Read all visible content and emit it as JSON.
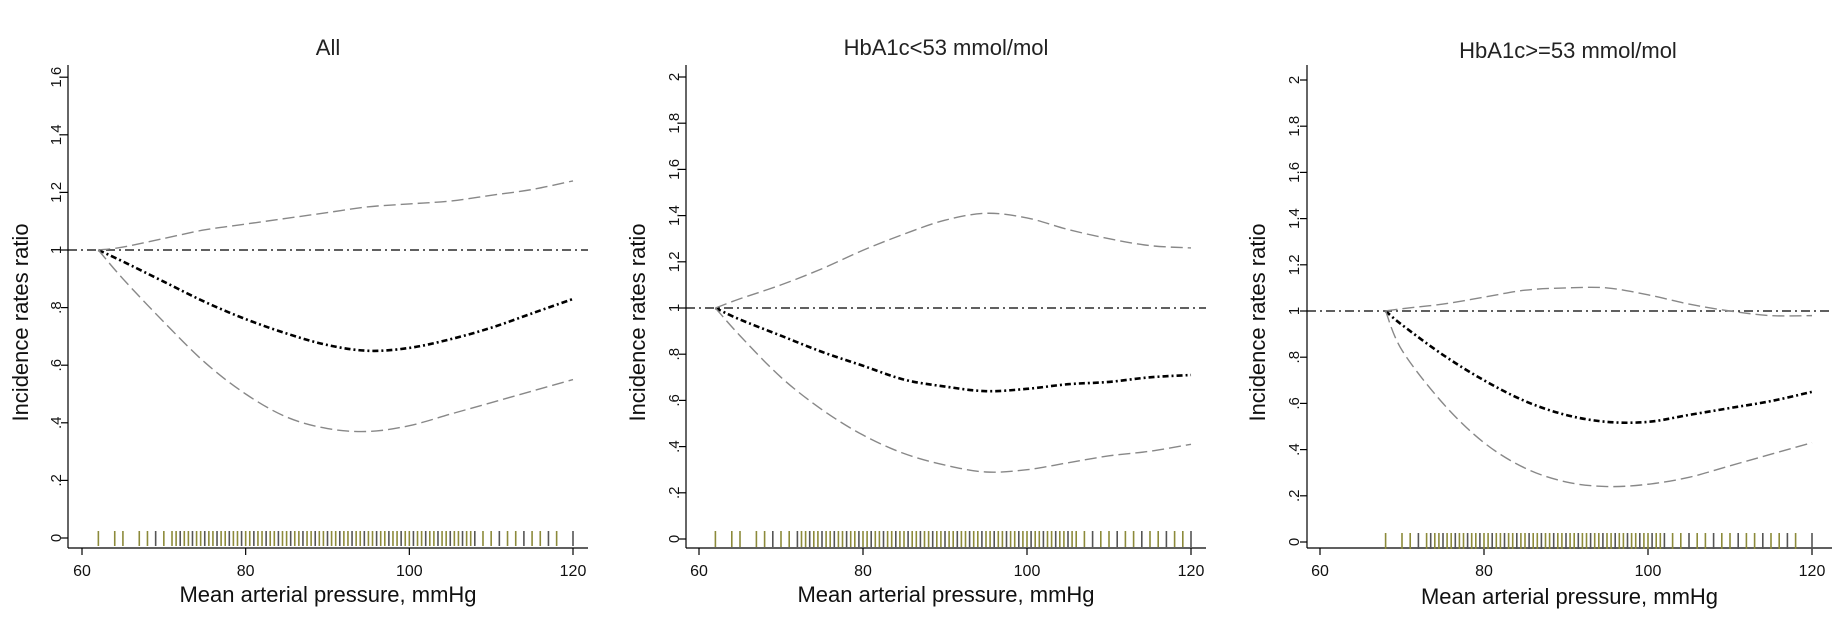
{
  "chart_data": [
    {
      "type": "line",
      "title": "All",
      "xlabel": "Mean arterial pressure, mmHg",
      "ylabel": "Incidence rates ratio",
      "xlim": [
        59,
        121
      ],
      "ylim": [
        0,
        1.65
      ],
      "xticks": [
        "60",
        "80",
        "100",
        "120"
      ],
      "yticks": [
        "0",
        ".2",
        ".4",
        ".6",
        ".8",
        "1",
        "1.2",
        "1.4",
        "1.6"
      ],
      "reference_line": 1,
      "series": [
        {
          "role": "estimate",
          "style": "dash-dot",
          "color": "#000000",
          "x": [
            62,
            65,
            70,
            75,
            80,
            85,
            90,
            95,
            100,
            105,
            110,
            115,
            120
          ],
          "y": [
            1.0,
            0.96,
            0.89,
            0.82,
            0.76,
            0.71,
            0.67,
            0.65,
            0.66,
            0.69,
            0.73,
            0.78,
            0.83
          ]
        },
        {
          "role": "upper_ci",
          "style": "dashed",
          "color": "#888888",
          "x": [
            62,
            65,
            70,
            75,
            80,
            85,
            90,
            95,
            100,
            105,
            110,
            115,
            120
          ],
          "y": [
            1.0,
            1.01,
            1.04,
            1.07,
            1.09,
            1.11,
            1.13,
            1.15,
            1.16,
            1.17,
            1.19,
            1.21,
            1.24
          ]
        },
        {
          "role": "lower_ci",
          "style": "dashed",
          "color": "#888888",
          "x": [
            62,
            65,
            70,
            75,
            80,
            85,
            90,
            95,
            100,
            105,
            110,
            115,
            120
          ],
          "y": [
            1.0,
            0.9,
            0.75,
            0.61,
            0.5,
            0.42,
            0.38,
            0.37,
            0.39,
            0.43,
            0.47,
            0.51,
            0.55
          ]
        }
      ],
      "rug_x": [
        62,
        64,
        65,
        67,
        68,
        69,
        70,
        71,
        71.5,
        72,
        72.5,
        73,
        73.5,
        74,
        74.5,
        75,
        75.5,
        76,
        76.5,
        77,
        77.5,
        78,
        78.5,
        79,
        79.5,
        80,
        80.5,
        81,
        81.5,
        82,
        82.5,
        83,
        83.5,
        84,
        84.5,
        85,
        85.5,
        86,
        86.5,
        87,
        87.5,
        88,
        88.5,
        89,
        89.5,
        90,
        90.5,
        91,
        91.5,
        92,
        92.5,
        93,
        93.5,
        94,
        94.5,
        95,
        95.5,
        96,
        96.5,
        97,
        97.5,
        98,
        98.5,
        99,
        99.5,
        100,
        100.5,
        101,
        101.5,
        102,
        102.5,
        103,
        103.5,
        104,
        104.5,
        105,
        105.5,
        106,
        106.5,
        107,
        107.5,
        108,
        109,
        110,
        111,
        112,
        113,
        114,
        115,
        116,
        117,
        118,
        120
      ]
    },
    {
      "type": "line",
      "title": "HbA1c<53 mmol/mol",
      "xlabel": "Mean arterial pressure, mmHg",
      "ylabel": "Incidence rates ratio",
      "xlim": [
        59,
        121
      ],
      "ylim": [
        0,
        2.05
      ],
      "xticks": [
        "60",
        "80",
        "100",
        "120"
      ],
      "yticks": [
        "0",
        ".2",
        ".4",
        ".6",
        ".8",
        "1",
        "1.2",
        "1.4",
        "1.6",
        "1.8",
        "2"
      ],
      "reference_line": 1,
      "series": [
        {
          "role": "estimate",
          "style": "dash-dot",
          "color": "#000000",
          "x": [
            62,
            65,
            70,
            75,
            80,
            85,
            90,
            95,
            100,
            105,
            110,
            115,
            120
          ],
          "y": [
            1.0,
            0.95,
            0.88,
            0.81,
            0.75,
            0.69,
            0.66,
            0.64,
            0.65,
            0.67,
            0.68,
            0.7,
            0.71
          ]
        },
        {
          "role": "upper_ci",
          "style": "dashed",
          "color": "#888888",
          "x": [
            62,
            65,
            70,
            75,
            80,
            85,
            90,
            95,
            100,
            105,
            110,
            115,
            120
          ],
          "y": [
            1.0,
            1.04,
            1.1,
            1.17,
            1.25,
            1.32,
            1.38,
            1.41,
            1.39,
            1.34,
            1.3,
            1.27,
            1.26
          ]
        },
        {
          "role": "lower_ci",
          "style": "dashed",
          "color": "#888888",
          "x": [
            62,
            65,
            70,
            75,
            80,
            85,
            90,
            95,
            100,
            105,
            110,
            115,
            120
          ],
          "y": [
            1.0,
            0.88,
            0.7,
            0.56,
            0.45,
            0.37,
            0.32,
            0.29,
            0.3,
            0.33,
            0.36,
            0.38,
            0.41
          ]
        }
      ],
      "rug_x": [
        62,
        64,
        65,
        67,
        68,
        69,
        70,
        71,
        72,
        72.5,
        73,
        73.5,
        74,
        74.5,
        75,
        75.5,
        76,
        76.5,
        77,
        77.5,
        78,
        78.5,
        79,
        79.5,
        80,
        80.5,
        81,
        81.5,
        82,
        82.5,
        83,
        83.5,
        84,
        84.5,
        85,
        85.5,
        86,
        86.5,
        87,
        87.5,
        88,
        88.5,
        89,
        89.5,
        90,
        90.5,
        91,
        91.5,
        92,
        92.5,
        93,
        93.5,
        94,
        94.5,
        95,
        95.5,
        96,
        96.5,
        97,
        97.5,
        98,
        98.5,
        99,
        99.5,
        100,
        100.5,
        101,
        101.5,
        102,
        102.5,
        103,
        103.5,
        104,
        104.5,
        105,
        105.5,
        106,
        107,
        108,
        109,
        110,
        111,
        112,
        113,
        114,
        115,
        116,
        117,
        118,
        119,
        120
      ]
    },
    {
      "type": "line",
      "title": "HbA1c>=53 mmol/mol",
      "xlabel": "Mean arterial pressure, mmHg",
      "ylabel": "Incidence rates ratio",
      "xlim": [
        58,
        122
      ],
      "ylim": [
        0,
        2.05
      ],
      "xticks": [
        "60",
        "80",
        "100",
        "120"
      ],
      "yticks": [
        "0",
        ".2",
        ".4",
        ".6",
        ".8",
        "1",
        "1.2",
        "1.4",
        "1.6",
        "1.8",
        "2"
      ],
      "reference_line": 1,
      "series": [
        {
          "role": "estimate",
          "style": "dash-dot",
          "color": "#000000",
          "x": [
            68,
            70,
            75,
            80,
            85,
            90,
            95,
            100,
            105,
            110,
            115,
            120
          ],
          "y": [
            1.0,
            0.94,
            0.81,
            0.7,
            0.61,
            0.55,
            0.52,
            0.52,
            0.55,
            0.58,
            0.61,
            0.65
          ]
        },
        {
          "role": "upper_ci",
          "style": "dashed",
          "color": "#888888",
          "x": [
            68,
            70,
            75,
            80,
            85,
            90,
            95,
            100,
            105,
            110,
            115,
            120
          ],
          "y": [
            1.0,
            1.01,
            1.03,
            1.06,
            1.09,
            1.1,
            1.1,
            1.07,
            1.03,
            1.0,
            0.98,
            0.98
          ]
        },
        {
          "role": "lower_ci",
          "style": "dashed",
          "color": "#888888",
          "x": [
            68,
            70,
            75,
            80,
            85,
            90,
            95,
            100,
            105,
            110,
            115,
            120
          ],
          "y": [
            1.0,
            0.83,
            0.6,
            0.43,
            0.32,
            0.26,
            0.24,
            0.25,
            0.28,
            0.33,
            0.38,
            0.43
          ]
        }
      ],
      "rug_x": [
        68,
        70,
        71,
        72,
        73,
        73.5,
        74,
        74.5,
        75,
        75.5,
        76,
        76.5,
        77,
        77.5,
        78,
        78.5,
        79,
        79.5,
        80,
        80.5,
        81,
        81.5,
        82,
        82.5,
        83,
        83.5,
        84,
        84.5,
        85,
        85.5,
        86,
        86.5,
        87,
        87.5,
        88,
        88.5,
        89,
        89.5,
        90,
        90.5,
        91,
        91.5,
        92,
        92.5,
        93,
        93.5,
        94,
        94.5,
        95,
        95.5,
        96,
        96.5,
        97,
        97.5,
        98,
        98.5,
        99,
        99.5,
        100,
        100.5,
        101,
        101.5,
        102,
        103,
        104,
        105,
        106,
        107,
        108,
        109,
        110,
        111,
        112,
        113,
        114,
        115,
        116,
        117,
        118,
        120
      ]
    }
  ]
}
